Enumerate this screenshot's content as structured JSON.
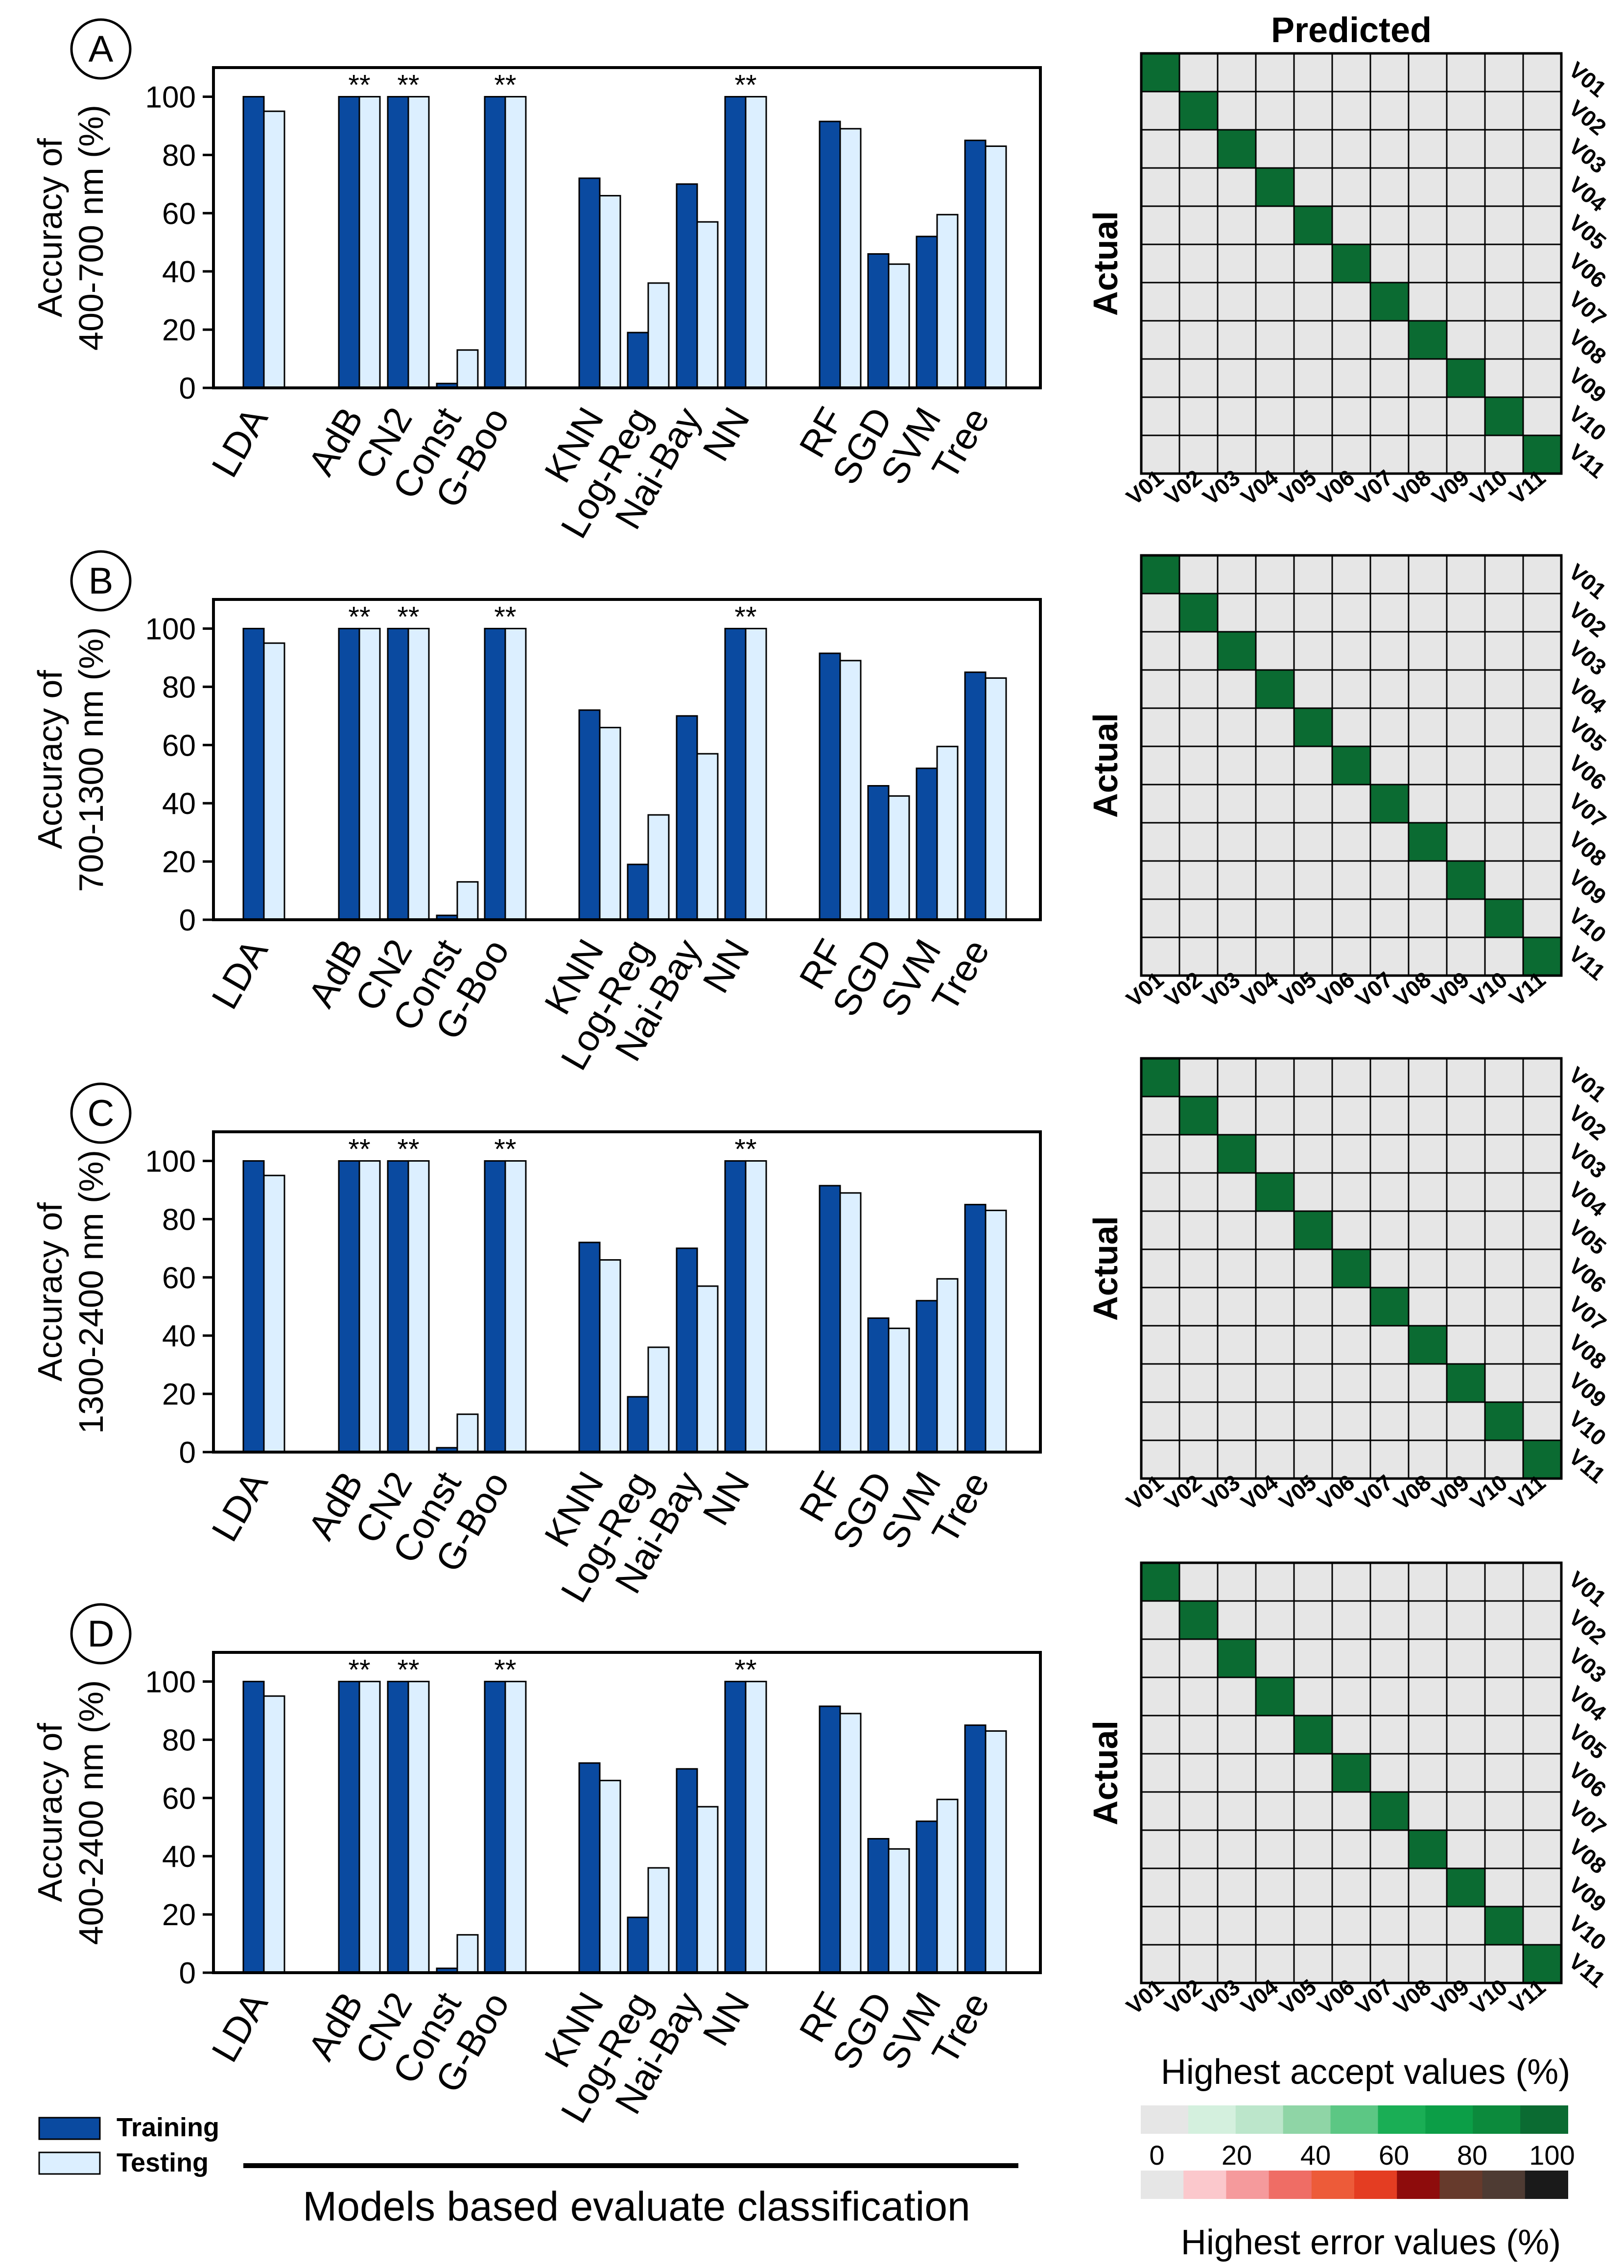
{
  "figure": {
    "xlabel": "Models based evaluate classification",
    "legend": {
      "training": "Training",
      "testing": "Testing"
    },
    "colors": {
      "training": "#0a4aa0",
      "testing": "#dcefff",
      "cm_background": "#e6e6e6",
      "cm_diagonal": "#0b6b32"
    },
    "matrix_title": "Predicted",
    "matrix_ylabel": "Actual",
    "matrix_labels": [
      "V01",
      "V02",
      "V03",
      "V04",
      "V05",
      "V06",
      "V07",
      "V08",
      "V09",
      "V10",
      "V11"
    ],
    "scales": {
      "accept_title": "Highest accept values (%)",
      "error_title": "Highest error values (%)",
      "ticks": [
        "0",
        "20",
        "40",
        "60",
        "80",
        "100"
      ],
      "accept_colors": [
        "#e6e6e6",
        "#d4f0de",
        "#bce6cb",
        "#8fd5a6",
        "#5cc784",
        "#1aae55",
        "#0c9e47",
        "#0c8a3c",
        "#0b6b32"
      ],
      "error_colors": [
        "#e6e6e6",
        "#fbc8cc",
        "#f59a9c",
        "#ef6d65",
        "#ed5b39",
        "#e43d22",
        "#8e0c0c",
        "#663a2c",
        "#4e3b33",
        "#1a1a1a"
      ]
    }
  },
  "chart_data": [
    {
      "type": "bar",
      "panel": "A",
      "ylabel": "Accuracy of\n400-700 nm (%)",
      "ylim": [
        0,
        110
      ],
      "yticks": [
        0,
        20,
        40,
        60,
        80,
        100
      ],
      "categories": [
        "LDA",
        "AdB",
        "CN2",
        "Const",
        "G-Boo",
        "KNN",
        "Log-Reg",
        "Nai-Bay",
        "NN",
        "RF",
        "SGD",
        "SVM",
        "Tree"
      ],
      "series": [
        {
          "name": "Training",
          "values": [
            100,
            100,
            100,
            1.5,
            100,
            72,
            19,
            70,
            100,
            91.5,
            46,
            52,
            85
          ]
        },
        {
          "name": "Testing",
          "values": [
            95,
            100,
            100,
            13,
            100,
            66,
            36,
            57,
            100,
            89,
            42.5,
            59.5,
            83
          ]
        }
      ],
      "annotations": [
        "",
        "**",
        "**",
        "",
        "**",
        "",
        "",
        "",
        "**",
        "",
        "",
        "",
        ""
      ]
    },
    {
      "type": "bar",
      "panel": "B",
      "ylabel": "Accuracy of\n700-1300 nm (%)",
      "ylim": [
        0,
        110
      ],
      "yticks": [
        0,
        20,
        40,
        60,
        80,
        100
      ],
      "categories": [
        "LDA",
        "AdB",
        "CN2",
        "Const",
        "G-Boo",
        "KNN",
        "Log-Reg",
        "Nai-Bay",
        "NN",
        "RF",
        "SGD",
        "SVM",
        "Tree"
      ],
      "series": [
        {
          "name": "Training",
          "values": [
            100,
            100,
            100,
            1.5,
            100,
            72,
            19,
            70,
            100,
            91.5,
            46,
            52,
            85
          ]
        },
        {
          "name": "Testing",
          "values": [
            95,
            100,
            100,
            13,
            100,
            66,
            36,
            57,
            100,
            89,
            42.5,
            59.5,
            83
          ]
        }
      ],
      "annotations": [
        "",
        "**",
        "**",
        "",
        "**",
        "",
        "",
        "",
        "**",
        "",
        "",
        "",
        ""
      ]
    },
    {
      "type": "bar",
      "panel": "C",
      "ylabel": "Accuracy of\n1300-2400 nm (%)",
      "ylim": [
        0,
        110
      ],
      "yticks": [
        0,
        20,
        40,
        60,
        80,
        100
      ],
      "categories": [
        "LDA",
        "AdB",
        "CN2",
        "Const",
        "G-Boo",
        "KNN",
        "Log-Reg",
        "Nai-Bay",
        "NN",
        "RF",
        "SGD",
        "SVM",
        "Tree"
      ],
      "series": [
        {
          "name": "Training",
          "values": [
            100,
            100,
            100,
            1.5,
            100,
            72,
            19,
            70,
            100,
            91.5,
            46,
            52,
            85
          ]
        },
        {
          "name": "Testing",
          "values": [
            95,
            100,
            100,
            13,
            100,
            66,
            36,
            57,
            100,
            89,
            42.5,
            59.5,
            83
          ]
        }
      ],
      "annotations": [
        "",
        "**",
        "**",
        "",
        "**",
        "",
        "",
        "",
        "**",
        "",
        "",
        "",
        ""
      ]
    },
    {
      "type": "bar",
      "panel": "D",
      "ylabel": "Accuracy of\n400-2400 nm (%)",
      "ylim": [
        0,
        110
      ],
      "yticks": [
        0,
        20,
        40,
        60,
        80,
        100
      ],
      "categories": [
        "LDA",
        "AdB",
        "CN2",
        "Const",
        "G-Boo",
        "KNN",
        "Log-Reg",
        "Nai-Bay",
        "NN",
        "RF",
        "SGD",
        "SVM",
        "Tree"
      ],
      "series": [
        {
          "name": "Training",
          "values": [
            100,
            100,
            100,
            1.5,
            100,
            72,
            19,
            70,
            100,
            91.5,
            46,
            52,
            85
          ]
        },
        {
          "name": "Testing",
          "values": [
            95,
            100,
            100,
            13,
            100,
            66,
            36,
            57,
            100,
            89,
            42.5,
            59.5,
            83
          ]
        }
      ],
      "annotations": [
        "",
        "**",
        "**",
        "",
        "**",
        "",
        "",
        "",
        "**",
        "",
        "",
        "",
        ""
      ]
    },
    {
      "type": "heatmap",
      "panel": "A",
      "rows": [
        "V01",
        "V02",
        "V03",
        "V04",
        "V05",
        "V06",
        "V07",
        "V08",
        "V09",
        "V10",
        "V11"
      ],
      "columns": [
        "V01",
        "V02",
        "V03",
        "V04",
        "V05",
        "V06",
        "V07",
        "V08",
        "V09",
        "V10",
        "V11"
      ],
      "diagonal_value": 100,
      "off_diagonal_value": 0
    },
    {
      "type": "heatmap",
      "panel": "B",
      "rows": [
        "V01",
        "V02",
        "V03",
        "V04",
        "V05",
        "V06",
        "V07",
        "V08",
        "V09",
        "V10",
        "V11"
      ],
      "columns": [
        "V01",
        "V02",
        "V03",
        "V04",
        "V05",
        "V06",
        "V07",
        "V08",
        "V09",
        "V10",
        "V11"
      ],
      "diagonal_value": 100,
      "off_diagonal_value": 0
    },
    {
      "type": "heatmap",
      "panel": "C",
      "rows": [
        "V01",
        "V02",
        "V03",
        "V04",
        "V05",
        "V06",
        "V07",
        "V08",
        "V09",
        "V10",
        "V11"
      ],
      "columns": [
        "V01",
        "V02",
        "V03",
        "V04",
        "V05",
        "V06",
        "V07",
        "V08",
        "V09",
        "V10",
        "V11"
      ],
      "diagonal_value": 100,
      "off_diagonal_value": 0
    },
    {
      "type": "heatmap",
      "panel": "D",
      "rows": [
        "V01",
        "V02",
        "V03",
        "V04",
        "V05",
        "V06",
        "V07",
        "V08",
        "V09",
        "V10",
        "V11"
      ],
      "columns": [
        "V01",
        "V02",
        "V03",
        "V04",
        "V05",
        "V06",
        "V07",
        "V08",
        "V09",
        "V10",
        "V11"
      ],
      "diagonal_value": 100,
      "off_diagonal_value": 0
    }
  ]
}
